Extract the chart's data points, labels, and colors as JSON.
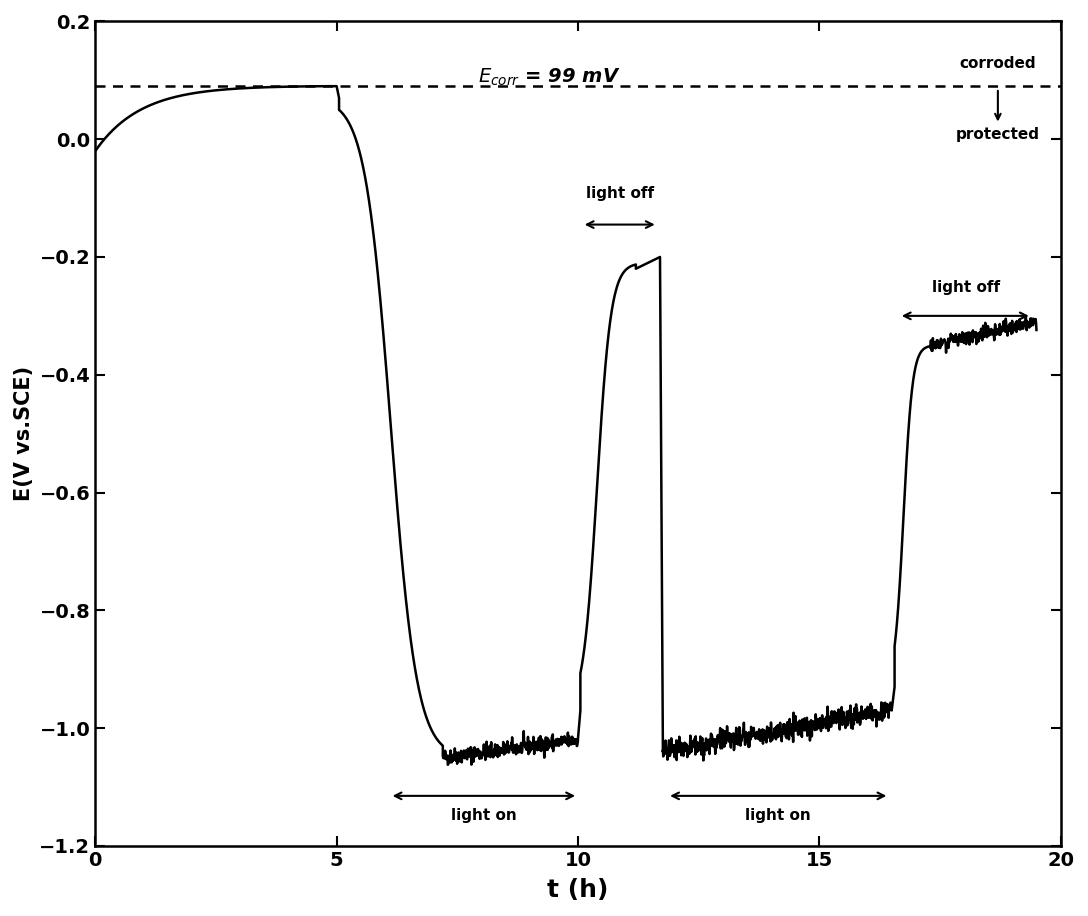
{
  "xlabel": "t (h)",
  "ylabel": "E(V vs.SCE)",
  "xlim": [
    0,
    20
  ],
  "ylim": [
    -1.2,
    0.2
  ],
  "xticks": [
    0,
    5,
    10,
    15,
    20
  ],
  "yticks": [
    -1.2,
    -1.0,
    -0.8,
    -0.6,
    -0.4,
    -0.2,
    0.0,
    0.2
  ],
  "corr_line_y": 0.09,
  "line_color": "#000000",
  "dashed_color": "#000000",
  "background_color": "#ffffff",
  "font_size": 14,
  "label_font_size": 16
}
